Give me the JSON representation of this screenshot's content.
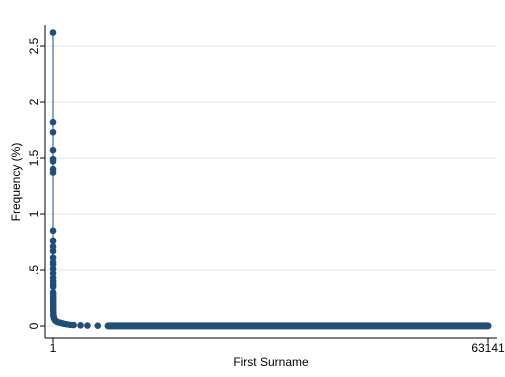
{
  "chart_data": {
    "type": "scatter",
    "xlabel": "First Surname",
    "ylabel": "Frequency (%)",
    "xlim": [
      1,
      63141
    ],
    "ylim": [
      0,
      2.5
    ],
    "x_ticks": [
      1,
      63141
    ],
    "x_tick_labels": [
      "1",
      "63141"
    ],
    "y_ticks": [
      0,
      0.5,
      1,
      1.5,
      2,
      2.5
    ],
    "y_tick_labels": [
      "0",
      ".5",
      "1",
      "1.5",
      "2",
      "2.5"
    ],
    "grid": true,
    "legend": false,
    "marker_color": "#1f4e79",
    "series": [
      {
        "points": [
          [
            1,
            2.62
          ],
          [
            2,
            1.82
          ],
          [
            3,
            1.73
          ],
          [
            4,
            1.57
          ],
          [
            5,
            1.49
          ],
          [
            6,
            1.47
          ],
          [
            7,
            1.4
          ],
          [
            8,
            1.37
          ],
          [
            9,
            0.85
          ],
          [
            10,
            0.76
          ],
          [
            11,
            0.71
          ],
          [
            12,
            0.67
          ],
          [
            13,
            0.61
          ],
          [
            14,
            0.57
          ],
          [
            15,
            0.55
          ],
          [
            16,
            0.51
          ],
          [
            17,
            0.47
          ],
          [
            18,
            0.43
          ],
          [
            19,
            0.4
          ],
          [
            20,
            0.37
          ],
          [
            21,
            0.35
          ],
          [
            22,
            0.3
          ],
          [
            23,
            0.28
          ],
          [
            24,
            0.26
          ],
          [
            25,
            0.24
          ],
          [
            26,
            0.22
          ],
          [
            27,
            0.2
          ],
          [
            28,
            0.18
          ],
          [
            29,
            0.16
          ],
          [
            30,
            0.15
          ],
          [
            35,
            0.13
          ],
          [
            40,
            0.12
          ],
          [
            50,
            0.1
          ],
          [
            70,
            0.09
          ],
          [
            100,
            0.08
          ],
          [
            150,
            0.07
          ],
          [
            200,
            0.06
          ],
          [
            300,
            0.05
          ],
          [
            400,
            0.045
          ],
          [
            500,
            0.04
          ],
          [
            700,
            0.035
          ],
          [
            1000,
            0.03
          ],
          [
            1300,
            0.025
          ],
          [
            1600,
            0.02
          ],
          [
            2000,
            0.015
          ],
          [
            2500,
            0.01
          ],
          [
            3000,
            0.008
          ],
          [
            4000,
            0.006
          ],
          [
            5000,
            0.004
          ],
          [
            6500,
            0.003
          ],
          [
            8000,
            0.002
          ]
        ],
        "tail": {
          "x_from": 8000,
          "x_to": 63141,
          "y": 0.001
        }
      }
    ]
  }
}
